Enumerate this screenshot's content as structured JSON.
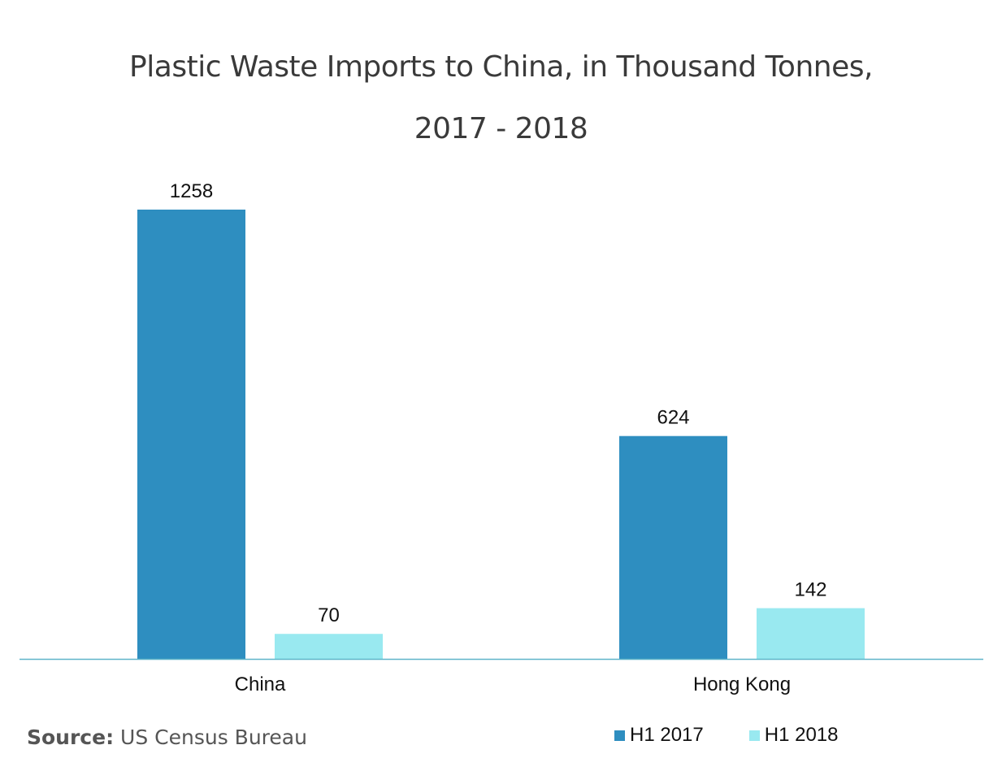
{
  "chart_data": {
    "type": "bar",
    "title": "Plastic Waste Imports to China, in Thousand Tonnes,",
    "subtitle": "2017 - 2018",
    "categories": [
      "China",
      "Hong Kong"
    ],
    "series": [
      {
        "name": "H1 2017",
        "values": [
          1258,
          624
        ],
        "color": "#2e8ec0"
      },
      {
        "name": "H1 2018",
        "values": [
          70,
          142
        ],
        "color": "#99e9f0"
      }
    ],
    "ylim": [
      0,
      1258
    ],
    "grid": false,
    "legend_position": "bottom-right",
    "axis_color": "#5fb5c9"
  },
  "source": {
    "label": "Source:",
    "text": "US Census Bureau"
  }
}
